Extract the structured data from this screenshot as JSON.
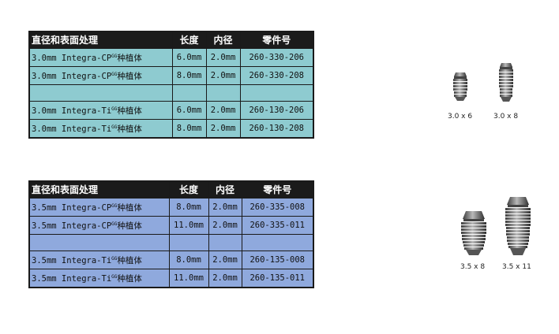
{
  "headers": {
    "diameter_surface": "直径和表面处理",
    "length": "长度",
    "inner_diameter": "内径",
    "part_number": "零件号"
  },
  "table_1": {
    "rows": [
      {
        "product": "3.0mm Integra-CP",
        "superscript": "GG",
        "suffix": "种植体",
        "length": "6.0mm",
        "inner": "2.0mm",
        "part": "260-330-206"
      },
      {
        "product": "3.0mm Integra-CP",
        "superscript": "GG",
        "suffix": "种植体",
        "length": "8.0mm",
        "inner": "2.0mm",
        "part": "260-330-208"
      },
      {
        "product": "",
        "superscript": "",
        "suffix": "",
        "length": "",
        "inner": "",
        "part": ""
      },
      {
        "product": "3.0mm Integra-Ti",
        "superscript": "GG",
        "suffix": "种植体",
        "length": "6.0mm",
        "inner": "2.0mm",
        "part": "260-130-206"
      },
      {
        "product": "3.0mm Integra-Ti",
        "superscript": "GG",
        "suffix": "种植体",
        "length": "8.0mm",
        "inner": "2.0mm",
        "part": "260-130-208"
      }
    ]
  },
  "table_2": {
    "rows": [
      {
        "product": "3.5mm Integra-CP",
        "superscript": "GG",
        "suffix": "种植体",
        "length": "8.0mm",
        "inner": "2.0mm",
        "part": "260-335-008"
      },
      {
        "product": "3.5mm Integra-CP",
        "superscript": "GG",
        "suffix": "种植体",
        "length": "11.0mm",
        "inner": "2.0mm",
        "part": "260-335-011"
      },
      {
        "product": "",
        "superscript": "",
        "suffix": "",
        "length": "",
        "inner": "",
        "part": ""
      },
      {
        "product": "3.5mm Integra-Ti",
        "superscript": "GG",
        "suffix": "种植体",
        "length": "8.0mm",
        "inner": "2.0mm",
        "part": "260-135-008"
      },
      {
        "product": "3.5mm Integra-Ti",
        "superscript": "GG",
        "suffix": "种植体",
        "length": "11.0mm",
        "inner": "2.0mm",
        "part": "260-135-011"
      }
    ]
  },
  "implant_labels": {
    "a": "3.0 x 6",
    "b": "3.0 x 8",
    "c": "3.5 x 8",
    "d": "3.5 x 11"
  },
  "colors": {
    "table_1_fill": "#8ecbd0",
    "table_2_fill": "#8fa9dd",
    "header_fill": "#1b1b1b"
  }
}
